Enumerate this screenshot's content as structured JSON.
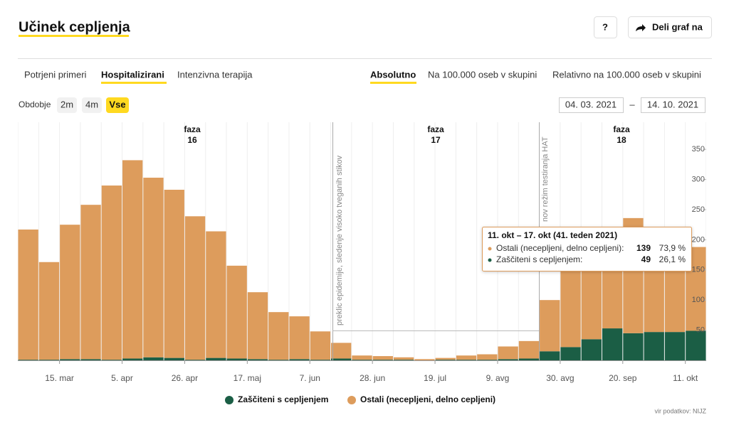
{
  "header": {
    "title": "Učinek cepljenja",
    "help_button": "?",
    "share_button": "Deli graf na"
  },
  "tabs": {
    "data": [
      "Potrjeni primeri",
      "Hospitalizirani",
      "Intenzivna terapija"
    ],
    "mode": [
      "Absolutno",
      "Na 100.000 oseb v skupini",
      "Relativno na 100.000 oseb v skupini"
    ]
  },
  "period": {
    "label": "Obdobje",
    "options": [
      "2m",
      "4m",
      "Vse"
    ],
    "from": "04. 03. 2021",
    "separator": "–",
    "to": "14. 10. 2021"
  },
  "chart_data": {
    "type": "stacked-bar",
    "categories": [
      null,
      null,
      "15. mar",
      null,
      null,
      "5. apr",
      null,
      null,
      "26. apr",
      null,
      null,
      "17. maj",
      null,
      null,
      "7. jun",
      null,
      null,
      "28. jun",
      null,
      null,
      "19. jul",
      null,
      null,
      "9. avg",
      null,
      null,
      "30. avg",
      null,
      null,
      "20. sep",
      null,
      null,
      "11. okt"
    ],
    "series": [
      {
        "name": "Zaščiteni s cepljenjem",
        "color": "#1b5e45",
        "values": [
          1,
          1,
          2,
          2,
          1,
          3,
          5,
          4,
          1,
          4,
          3,
          2,
          1,
          2,
          1,
          3,
          1,
          1,
          1,
          0,
          1,
          1,
          1,
          2,
          3,
          15,
          22,
          35,
          53,
          45,
          47,
          47,
          49
        ]
      },
      {
        "name": "Ostali (necepljeni, delno cepljeni)",
        "color": "#dd9c5c",
        "values": [
          216,
          162,
          223,
          256,
          289,
          329,
          298,
          279,
          238,
          210,
          154,
          111,
          79,
          71,
          47,
          26,
          7,
          6,
          4,
          2,
          3,
          7,
          9,
          21,
          29,
          85,
          133,
          135,
          132,
          191,
          153,
          143,
          139
        ]
      }
    ],
    "ylim": [
      0,
      395
    ],
    "yticks": [
      50,
      100,
      150,
      200,
      250,
      300,
      350
    ],
    "phases": [
      {
        "label": "faza",
        "number": "16"
      },
      {
        "label": "faza",
        "number": "17"
      },
      {
        "label": "faza",
        "number": "18"
      }
    ],
    "events": [
      "preklic epidemije, sledenje visoko tveganih stikov",
      "nov režim testiranja HAT"
    ],
    "tooltip": {
      "title": "11. okt – 17. okt (41. teden 2021)",
      "rows": [
        {
          "label": "Ostali (necepljeni, delno cepljeni):",
          "percent": "73,9 %"
        },
        {
          "label": "Zaščiteni s cepljenjem:",
          "percent": "26,1 %"
        }
      ]
    },
    "source": "vir podatkov: NIJZ"
  }
}
